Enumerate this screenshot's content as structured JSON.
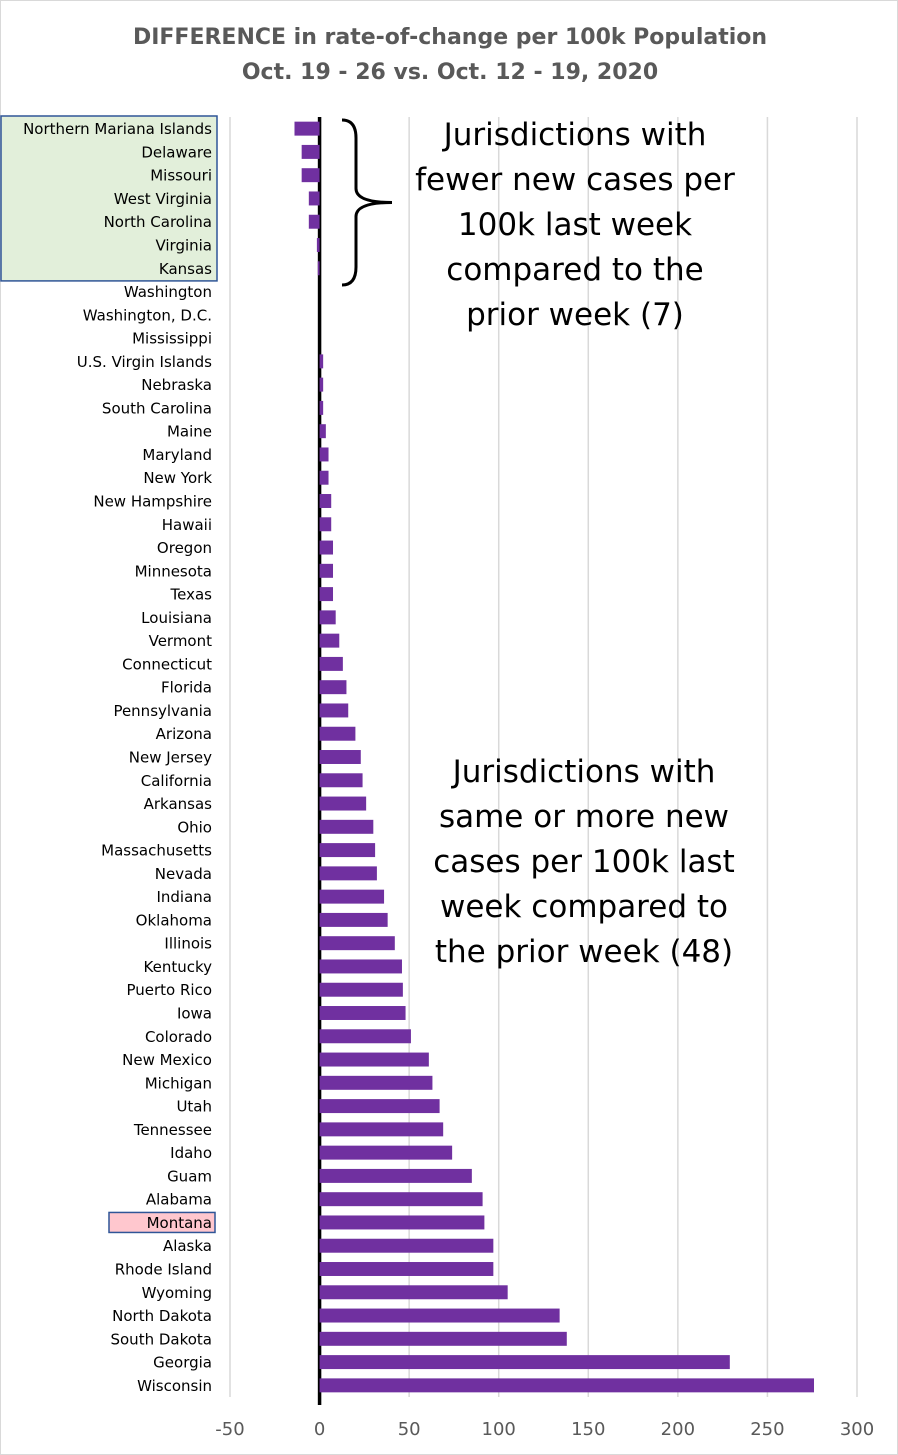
{
  "chart_data": {
    "type": "bar",
    "orientation": "horizontal",
    "title": "DIFFERENCE in rate-of-change per 100k Population",
    "subtitle": "Oct. 19 - 26 vs. Oct. 12 - 19, 2020",
    "xlim": [
      -50,
      300
    ],
    "xticks": [
      -50,
      0,
      50,
      100,
      150,
      200,
      250,
      300
    ],
    "grid": true,
    "bar_color": "#7030a0",
    "categories": [
      "Northern Mariana Islands",
      "Delaware",
      "Missouri",
      "West Virginia",
      "North Carolina",
      "Virginia",
      "Kansas",
      "Washington",
      "Washington, D.C.",
      "Mississippi",
      "U.S. Virgin Islands",
      "Nebraska",
      "South Carolina",
      "Maine",
      "Maryland",
      "New York",
      "New Hampshire",
      "Hawaii",
      "Oregon",
      "Minnesota",
      "Texas",
      "Louisiana",
      "Vermont",
      "Connecticut",
      "Florida",
      "Pennsylvania",
      "Arizona",
      "New Jersey",
      "California",
      "Arkansas",
      "Ohio",
      "Massachusetts",
      "Nevada",
      "Indiana",
      "Oklahoma",
      "Illinois",
      "Kentucky",
      "Puerto Rico",
      "Iowa",
      "Colorado",
      "New Mexico",
      "Michigan",
      "Utah",
      "Tennessee",
      "Idaho",
      "Guam",
      "Alabama",
      "Montana",
      "Alaska",
      "Rhode Island",
      "Wyoming",
      "North Dakota",
      "South Dakota",
      "Georgia",
      "Wisconsin"
    ],
    "values": [
      -14,
      -10,
      -10,
      -6,
      -6,
      -1.5,
      -1,
      0,
      0,
      0,
      2,
      2,
      2,
      3.5,
      5,
      5,
      6.5,
      6.5,
      7.5,
      7.5,
      7.5,
      9,
      11,
      13,
      15,
      16,
      20,
      23,
      24,
      26,
      30,
      31,
      32,
      36,
      38,
      42,
      46,
      46.5,
      48,
      51,
      61,
      63,
      67,
      69,
      74,
      85,
      91,
      92,
      97,
      97,
      105,
      134,
      138,
      229,
      276
    ],
    "annotations": [
      "Jurisdictions with fewer new cases per 100k last week compared to the prior week (7)",
      "Jurisdictions with same or more new cases per 100k last week compared to the prior week (48)"
    ]
  },
  "annotation_top_lines": [
    "Jurisdictions with",
    "fewer new cases per",
    "100k last week",
    "compared to the",
    "prior week (7)"
  ],
  "annotation_bottom_lines": [
    "Jurisdictions with",
    "same or more new",
    "cases per 100k last",
    "week compared to",
    "the prior week (48)"
  ],
  "highlights": {
    "fewer_group": {
      "from": 0,
      "to": 6,
      "fill": "#e2efda",
      "border": "#2f5597"
    },
    "focus": {
      "index": 47,
      "fill": "#ffc7ce",
      "border": "#2f5597"
    }
  }
}
